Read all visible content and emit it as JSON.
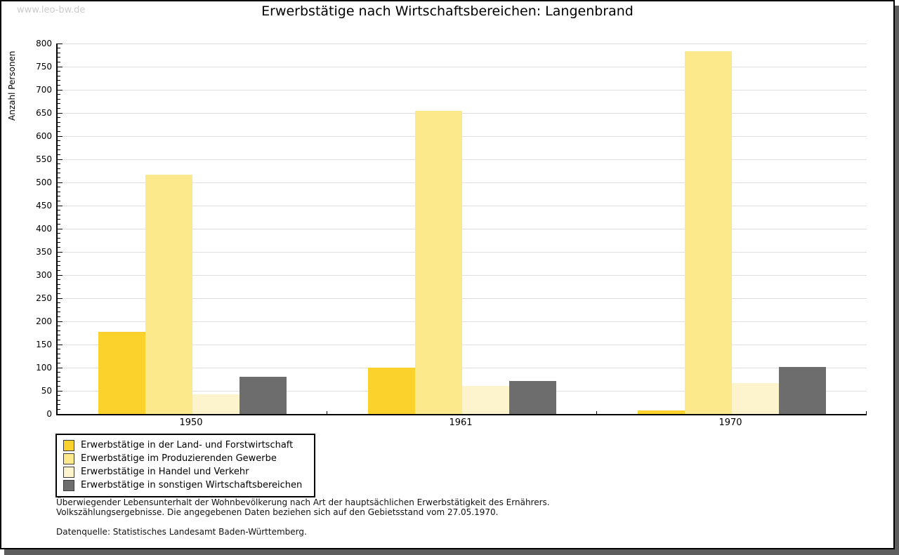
{
  "watermark": "www.leo-bw.de",
  "title": "Erwerbstätige nach Wirtschaftsbereichen: Langenbrand",
  "chart_data": {
    "type": "bar",
    "title": "Erwerbstätige nach Wirtschaftsbereichen: Langenbrand",
    "xlabel": "",
    "ylabel": "Anzahl Personen",
    "ylim": [
      0,
      800
    ],
    "ytick_step": 50,
    "y_minor_tick_step": 10,
    "grid": true,
    "legend_position": "bottom-left",
    "categories": [
      "1950",
      "1961",
      "1970"
    ],
    "series": [
      {
        "key": "land-forstwirtschaft",
        "name": "Erwerbstätige in der Land- und Forstwirtschaft",
        "color": "#fbd22b",
        "values": [
          177,
          100,
          8
        ]
      },
      {
        "key": "produzierendes-gewerbe",
        "name": "Erwerbstätige im Produzierenden Gewerbe",
        "color": "#fce98b",
        "values": [
          516,
          654,
          783
        ]
      },
      {
        "key": "handel-verkehr",
        "name": "Erwerbstätige in Handel und Verkehr",
        "color": "#fdf4cd",
        "values": [
          42,
          61,
          66
        ]
      },
      {
        "key": "sonstige-bereiche",
        "name": "Erwerbstätige in sonstigen Wirtschaftsbereichen",
        "color": "#6d6d6d",
        "values": [
          81,
          71,
          102
        ]
      }
    ]
  },
  "footnotes": {
    "line1": "Überwiegender Lebensunterhalt der Wohnbevölkerung nach Art der hauptsächlichen Erwerbstätigkeit des Ernährers.",
    "line2": "Volkszählungsergebnisse. Die angegebenen Daten beziehen sich auf den Gebietsstand vom 27.05.1970.",
    "source": "Datenquelle: Statistisches Landesamt Baden-Württemberg."
  }
}
